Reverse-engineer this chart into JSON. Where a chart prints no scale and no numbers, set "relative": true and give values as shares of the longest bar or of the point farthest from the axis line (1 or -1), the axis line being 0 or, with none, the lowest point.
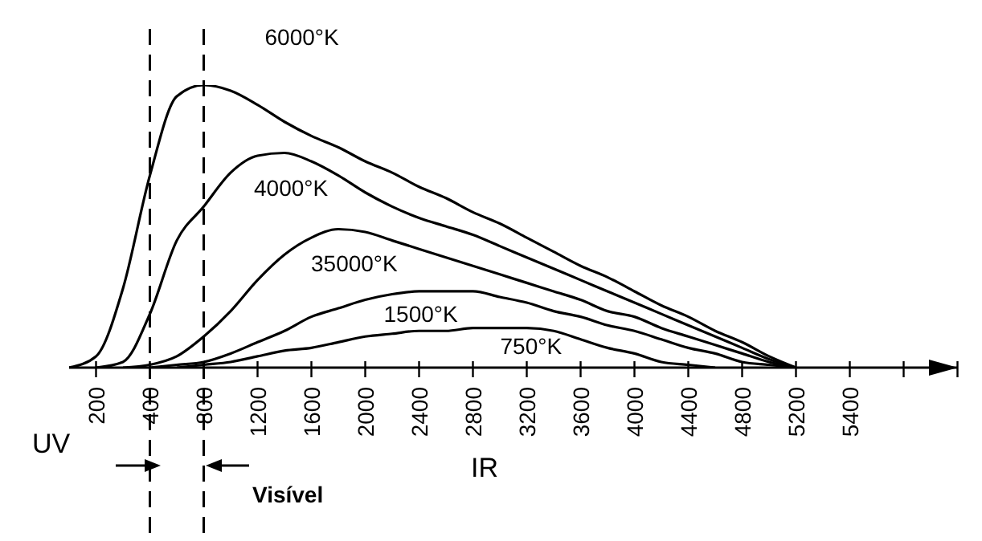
{
  "chart_data": {
    "type": "line",
    "relative": true,
    "categories": [
      null,
      "200",
      null,
      "400",
      null,
      "800",
      null,
      "1200",
      null,
      "1600",
      null,
      "2000",
      null,
      "2400",
      null,
      "2800",
      null,
      "3200",
      null,
      "3600",
      null,
      "4000",
      null,
      "4400",
      null,
      "4800",
      null,
      "5200",
      null,
      "5400",
      null,
      null,
      null,
      null
    ],
    "series": [
      {
        "name": "6000°K",
        "color": "#000000",
        "values": [
          0,
          0.04,
          0.28,
          0.68,
          0.96,
          1,
          0.98,
          0.93,
          0.87,
          0.82,
          0.78,
          0.73,
          0.69,
          0.64,
          0.6,
          0.55,
          0.51,
          0.46,
          0.41,
          0.36,
          0.32,
          0.27,
          0.22,
          0.18,
          0.13,
          0.09,
          0.04,
          0,
          null,
          null,
          null,
          null,
          null,
          null
        ]
      },
      {
        "name": "4000°K",
        "color": "#000000",
        "values": [
          null,
          0,
          0.02,
          0.19,
          0.45,
          0.57,
          0.69,
          0.75,
          0.76,
          0.73,
          0.68,
          0.62,
          0.57,
          0.53,
          0.5,
          0.47,
          0.43,
          0.39,
          0.35,
          0.31,
          0.27,
          0.23,
          0.19,
          0.15,
          0.11,
          0.07,
          0.03,
          0,
          null,
          null,
          null,
          null,
          null,
          null
        ]
      },
      {
        "name": "35000°K",
        "color": "#000000",
        "values": [
          null,
          null,
          0,
          0.01,
          0.04,
          0.11,
          0.2,
          0.31,
          0.4,
          0.46,
          0.49,
          0.48,
          0.45,
          0.42,
          0.39,
          0.36,
          0.33,
          0.3,
          0.27,
          0.24,
          0.2,
          0.18,
          0.14,
          0.11,
          0.08,
          0.05,
          0.02,
          0,
          null,
          null,
          null,
          null,
          null,
          null
        ]
      },
      {
        "name": "1500°K",
        "color": "#000000",
        "values": [
          null,
          null,
          null,
          0,
          0.01,
          0.02,
          0.05,
          0.09,
          0.13,
          0.18,
          0.21,
          0.24,
          0.26,
          0.27,
          0.27,
          0.27,
          0.25,
          0.23,
          0.2,
          0.18,
          0.15,
          0.13,
          0.1,
          0.07,
          0.05,
          0.02,
          0.01,
          0,
          null,
          null,
          null,
          null,
          null,
          null
        ]
      },
      {
        "name": "750°K",
        "color": "#000000",
        "values": [
          null,
          null,
          null,
          null,
          0,
          0.01,
          0.02,
          0.04,
          0.06,
          0.07,
          0.09,
          0.11,
          0.12,
          0.13,
          0.13,
          0.14,
          0.14,
          0.14,
          0.13,
          0.1,
          0.07,
          0.05,
          0.02,
          0.01,
          0,
          null,
          null,
          null,
          null,
          null,
          null,
          null,
          null,
          null
        ]
      }
    ],
    "ref_lines": [
      {
        "axis": "x",
        "value": "400",
        "line_style": "dashed",
        "color": "#000000"
      },
      {
        "axis": "x",
        "value": "800",
        "line_style": "dashed",
        "color": "#000000"
      }
    ],
    "annotations": [
      "UV",
      "IR",
      "Visível"
    ],
    "marker": "none",
    "line_style": "solid"
  }
}
